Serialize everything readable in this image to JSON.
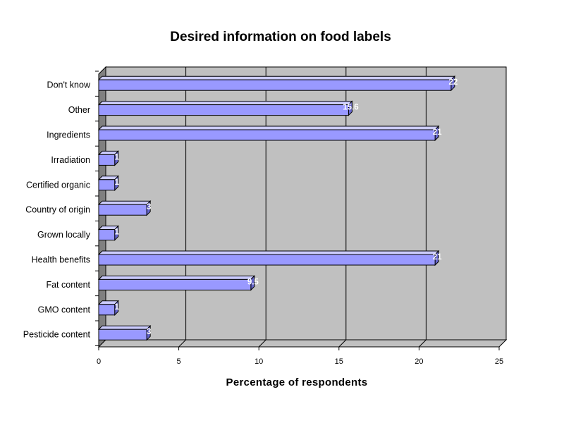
{
  "chart_data": {
    "type": "bar",
    "orientation": "horizontal",
    "title": "Desired information on food labels",
    "xlabel": "Percentage of respondents",
    "ylabel": "",
    "categories": [
      "Don't know",
      "Other",
      "Ingredients",
      "Irradiation",
      "Certified organic",
      "Country of origin",
      "Grown locally",
      "Health benefits",
      "Fat content",
      "GMO content",
      "Pesticide content"
    ],
    "values": [
      22,
      15.6,
      21,
      1,
      1,
      3,
      1,
      21,
      9.5,
      1,
      3
    ],
    "value_labels": [
      "22",
      "15.6",
      "21",
      "1",
      "1",
      "3",
      "1",
      "21",
      "9.5",
      "1",
      "3"
    ],
    "xlim": [
      0,
      25
    ],
    "x_ticks": [
      "0",
      "5",
      "10",
      "15",
      "20",
      "25"
    ],
    "grid": "vertical",
    "legend": "none",
    "colors": {
      "bar_face": "#9999ff",
      "bar_top": "#ccccff",
      "bar_side": "#6666cc",
      "plot_wall": "#c0c0c0",
      "side_wall": "#808080",
      "floor": "#c0c0c0"
    }
  }
}
